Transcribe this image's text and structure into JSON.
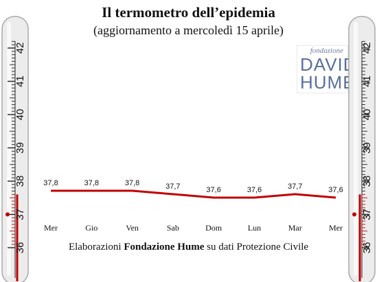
{
  "header": {
    "title": "Il termometro dell’epidemia",
    "subtitle": "(aggiornamento a mercoledì 15 aprile)"
  },
  "credit": {
    "prefix": "Elaborazioni ",
    "bold": "Fondazione Hume",
    "suffix": " su dati Protezione Civile"
  },
  "logo": {
    "line1": "fondazione",
    "line2": "DAVID",
    "line3": "HUME"
  },
  "thermometer": {
    "labels": [
      "42",
      "41",
      "40",
      "39",
      "38",
      "37",
      "36"
    ],
    "red_value": "37",
    "mercury_level": 37.6
  },
  "colors": {
    "line": "#c00000",
    "thermo_body": "#ececec",
    "thermo_red": "#c00000"
  },
  "chart_data": {
    "type": "line",
    "categories": [
      "Mer",
      "Gio",
      "Ven",
      "Sab",
      "Dom",
      "Lun",
      "Mar",
      "Mer"
    ],
    "values": [
      37.8,
      37.8,
      37.8,
      37.7,
      37.6,
      37.6,
      37.7,
      37.6
    ],
    "value_labels": [
      "37,8",
      "37,8",
      "37,8",
      "37,7",
      "37,6",
      "37,6",
      "37,7",
      "37,6"
    ],
    "ylim": [
      37.0,
      38.5
    ],
    "grid": false
  }
}
